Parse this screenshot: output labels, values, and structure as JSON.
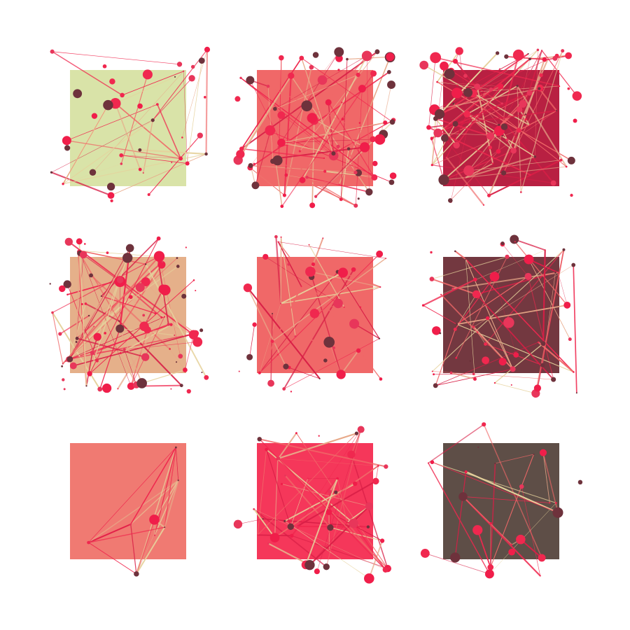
{
  "grid": {
    "rows": 3,
    "columns": 3,
    "panels": [
      {
        "square_color": "#d9e3a8",
        "node_count": 40,
        "edge_count": 30
      },
      {
        "square_color": "#f06868",
        "node_count": 80,
        "edge_count": 70
      },
      {
        "square_color": "#b82042",
        "node_count": 90,
        "edge_count": 90
      },
      {
        "square_color": "#e5b08a",
        "node_count": 90,
        "edge_count": 80
      },
      {
        "square_color": "#f06868",
        "node_count": 45,
        "edge_count": 35
      },
      {
        "square_color": "#733840",
        "node_count": 55,
        "edge_count": 50
      },
      {
        "square_color": "#f07a72",
        "node_count": 8,
        "edge_count": 40
      },
      {
        "square_color": "#f5375a",
        "node_count": 45,
        "edge_count": 55
      },
      {
        "square_color": "#5e4e47",
        "node_count": 25,
        "edge_count": 25
      }
    ]
  },
  "palette": {
    "node_colors": [
      "#f01e4a",
      "#6e323c",
      "#e8365a",
      "#f0284f"
    ],
    "edge_colors": [
      "#e8a888",
      "#f0284f",
      "#e6d29c",
      "#f06868",
      "#d81e46"
    ]
  }
}
